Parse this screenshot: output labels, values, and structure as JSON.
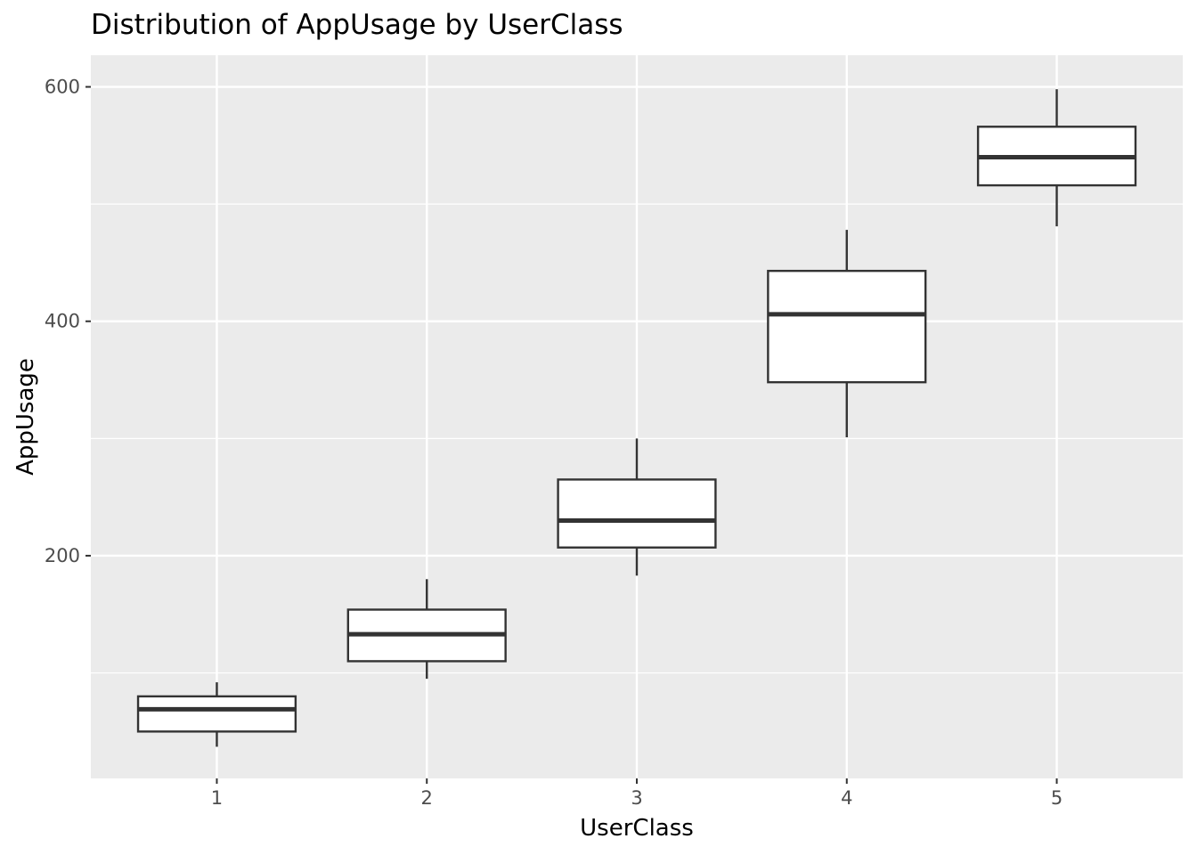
{
  "chart_data": {
    "type": "boxplot",
    "title": "Distribution of  AppUsage  by  UserClass",
    "xlabel": "UserClass",
    "ylabel": "AppUsage",
    "categories": [
      "1",
      "2",
      "3",
      "4",
      "5"
    ],
    "boxes": [
      {
        "category": "1",
        "whisker_low": 37,
        "q1": 50,
        "median": 69,
        "q3": 80,
        "whisker_high": 92
      },
      {
        "category": "2",
        "whisker_low": 95,
        "q1": 110,
        "median": 133,
        "q3": 154,
        "whisker_high": 180
      },
      {
        "category": "3",
        "whisker_low": 183,
        "q1": 207,
        "median": 230,
        "q3": 265,
        "whisker_high": 300
      },
      {
        "category": "4",
        "whisker_low": 301,
        "q1": 348,
        "median": 406,
        "q3": 443,
        "whisker_high": 478
      },
      {
        "category": "5",
        "whisker_low": 481,
        "q1": 516,
        "median": 540,
        "q3": 566,
        "whisker_high": 598
      }
    ],
    "y_ticks": [
      200,
      400,
      600
    ],
    "y_tick_labels": [
      "200",
      "400",
      "600"
    ],
    "ylim": [
      10,
      627
    ],
    "grid": true,
    "legend": "none",
    "colors": {
      "panel_background": "#ebebeb",
      "grid": "#ffffff",
      "box_fill": "#ffffff",
      "box_stroke": "#333333",
      "tick_text": "#4d4d4d"
    }
  }
}
